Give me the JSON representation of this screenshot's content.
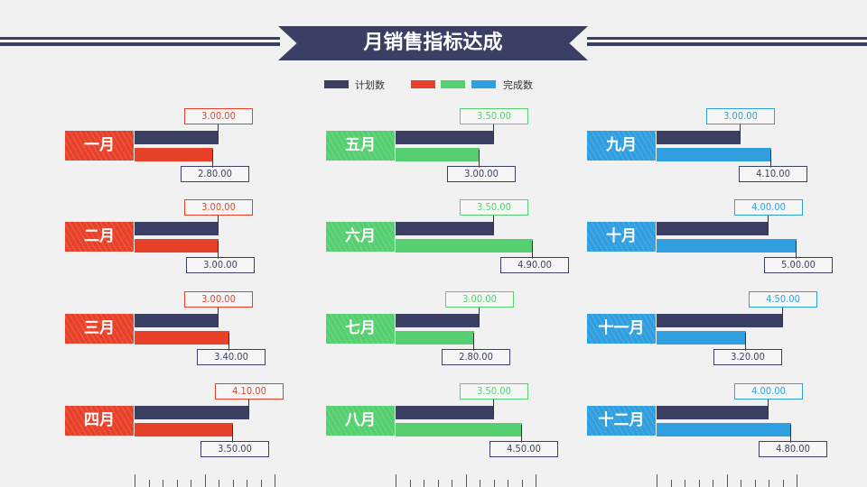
{
  "title": "月销售指标达成",
  "legend": {
    "plan_label": "计划数",
    "done_label": "完成数",
    "plan_color": "#3b3f63",
    "done_colors": [
      "#e8412a",
      "#55cf6f",
      "#2f9fe0"
    ]
  },
  "chart_data": {
    "type": "bar",
    "title": "月销售指标达成",
    "categories": [
      "一月",
      "二月",
      "三月",
      "四月",
      "五月",
      "六月",
      "七月",
      "八月",
      "九月",
      "十月",
      "十一月",
      "十二月"
    ],
    "series": [
      {
        "name": "计划数",
        "values": [
          "3.00.00",
          "3.00.00",
          "3.00.00",
          "4.10.00",
          "3.50.00",
          "3.50.00",
          "3.00.00",
          "3.50.00",
          "3.00.00",
          "4.00.00",
          "4.50.00",
          "4.00.00"
        ]
      },
      {
        "name": "完成数",
        "values": [
          "2.80.00",
          "3.00.00",
          "3.40.00",
          "3.50.00",
          "3.00.00",
          "4.90.00",
          "2.80.00",
          "4.50.00",
          "4.10.00",
          "5.00.00",
          "3.20.00",
          "4.80.00"
        ]
      }
    ],
    "numeric": {
      "plan": [
        3.0,
        3.0,
        3.0,
        4.1,
        3.5,
        3.5,
        3.0,
        3.5,
        3.0,
        4.0,
        4.5,
        4.0
      ],
      "done": [
        2.8,
        3.0,
        3.4,
        3.5,
        3.0,
        4.9,
        2.8,
        4.5,
        4.1,
        5.0,
        3.2,
        4.8
      ]
    },
    "group_colors": [
      "#e8412a",
      "#e8412a",
      "#e8412a",
      "#e8412a",
      "#55cf6f",
      "#55cf6f",
      "#55cf6f",
      "#55cf6f",
      "#2f9fe0",
      "#2f9fe0",
      "#2f9fe0",
      "#2f9fe0"
    ],
    "plan_color": "#3b3f63",
    "xlim": [
      0,
      5
    ],
    "grid": false,
    "legend_position": "top-center"
  }
}
